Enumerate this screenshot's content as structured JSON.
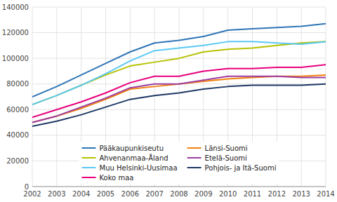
{
  "chart_data": {
    "type": "line",
    "x": [
      2002,
      2003,
      2004,
      2005,
      2006,
      2007,
      2008,
      2009,
      2010,
      2011,
      2012,
      2013,
      2014
    ],
    "series": [
      {
        "name": "Pääkaupunkiseutu",
        "color": "#2e75b6",
        "line_style": "solid",
        "values": [
          70000,
          78000,
          87000,
          96000,
          105000,
          112000,
          114000,
          117000,
          122000,
          123000,
          124000,
          125000,
          127000
        ]
      },
      {
        "name": "Ahvenanmaa-Åland",
        "color": "#b5c200",
        "line_style": "solid",
        "values": [
          64000,
          71000,
          79000,
          87000,
          94000,
          97000,
          100000,
          105000,
          107000,
          108000,
          110000,
          112000,
          113000
        ]
      },
      {
        "name": "Muu Helsinki-Uusimaa",
        "color": "#5bc8f5",
        "line_style": "solid",
        "values": [
          64000,
          71000,
          79000,
          88000,
          98000,
          106000,
          108000,
          110000,
          113000,
          113000,
          112000,
          111000,
          113000
        ]
      },
      {
        "name": "Koko maa",
        "color": "#e8007d",
        "line_style": "solid",
        "values": [
          54000,
          60000,
          66000,
          73000,
          81000,
          86000,
          86000,
          90000,
          92000,
          92000,
          93000,
          93000,
          95000
        ]
      },
      {
        "name": "Länsi-Suomi",
        "color": "#f0820f",
        "line_style": "solid",
        "values": [
          50000,
          55000,
          61000,
          68000,
          76000,
          78000,
          80000,
          82000,
          84000,
          85000,
          86000,
          86000,
          87000
        ]
      },
      {
        "name": "Etelä-Suomi",
        "color": "#9e3da0",
        "line_style": "solid",
        "values": [
          50000,
          55000,
          62000,
          69000,
          77000,
          80000,
          80000,
          83000,
          86000,
          86000,
          86000,
          85000,
          85000
        ]
      },
      {
        "name": "Pohjois- ja Itä-Suomi",
        "color": "#1f3864",
        "line_style": "solid",
        "values": [
          47000,
          51000,
          56000,
          62000,
          68000,
          71000,
          73000,
          76000,
          78000,
          79000,
          79000,
          79000,
          80000
        ]
      }
    ],
    "xlim": [
      2002,
      2014
    ],
    "xticks": [
      2002,
      2003,
      2004,
      2005,
      2006,
      2007,
      2008,
      2009,
      2010,
      2011,
      2012,
      2013,
      2014
    ],
    "ylim": [
      0,
      140000
    ],
    "yticks": [
      0,
      20000,
      40000,
      60000,
      80000,
      100000,
      120000,
      140000
    ],
    "grid": true,
    "legend": "lower center"
  }
}
